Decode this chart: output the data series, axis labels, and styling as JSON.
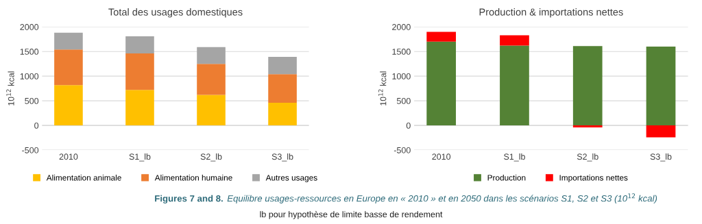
{
  "chart_data": [
    {
      "type": "bar",
      "title": "Total des usages domestiques",
      "ylabel": "10$^{12}$ kcal",
      "categories": [
        "2010",
        "S1_lb",
        "S2_lb",
        "S3_lb"
      ],
      "stacked": true,
      "series": [
        {
          "name": "Alimentation animale",
          "color": "#ffc000",
          "values": [
            820,
            720,
            620,
            460
          ]
        },
        {
          "name": "Alimentation humaine",
          "color": "#ed7d31",
          "values": [
            720,
            740,
            630,
            580
          ]
        },
        {
          "name": "Autres usages",
          "color": "#a5a5a5",
          "values": [
            340,
            350,
            340,
            350
          ]
        }
      ],
      "ylim": [
        -500,
        2000
      ],
      "yticks": [
        {
          "value": -500,
          "label": "-500"
        },
        0,
        500,
        1000,
        1500,
        2000
      ],
      "grid": "y",
      "legend": "bottom",
      "annotations": [
        "Figures 7 and 8.",
        "Equilibre usages-ressources en Europe en « 2010 » et en 2050 dans les scénarios S1, S2 et S3 (10$^{12}$ kcal)",
        "lb pour hypothèse de limite basse de rendement"
      ]
    },
    {
      "type": "bar",
      "title": "Production & importations nettes",
      "ylabel": "10$^{12}$ kcal",
      "categories": [
        "2010",
        "S1_lb",
        "S2_lb",
        "S3_lb"
      ],
      "stacked": true,
      "series": [
        {
          "name": "Production",
          "color": "#548235",
          "values": [
            1700,
            1620,
            1610,
            1600
          ]
        },
        {
          "name": "Importations nettes",
          "color": "#ff0000",
          "values": [
            200,
            210,
            -40,
            -240
          ]
        }
      ],
      "ylim": [
        -500,
        2000
      ],
      "yticks": [
        {
          "value": -500,
          "label": "-500"
        },
        0,
        500,
        1000,
        1500,
        2000
      ],
      "grid": "y",
      "legend": "bottom"
    }
  ]
}
